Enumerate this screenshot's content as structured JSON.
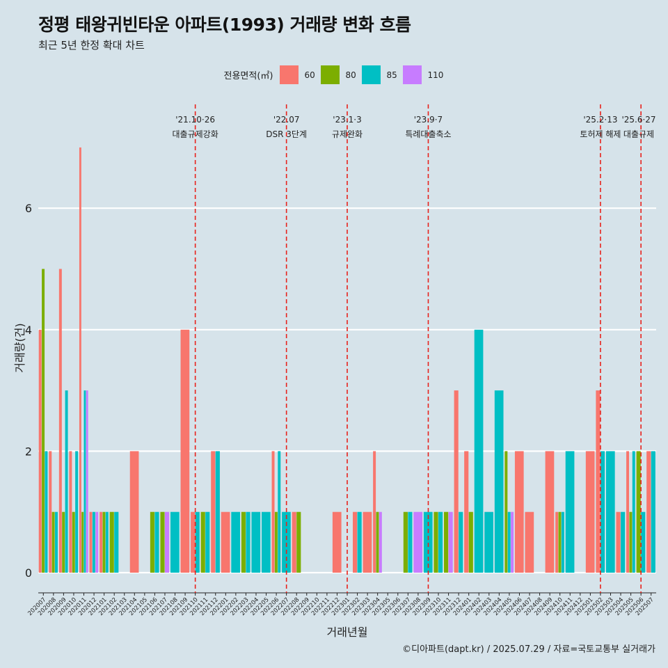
{
  "header": {
    "title": "정평 태왕귀빈타운 아파트(1993) 거래량 변화 흐름",
    "subtitle": "최근 5년 한정 확대 차트"
  },
  "legend": {
    "title": "전용면적(㎡)",
    "items": [
      {
        "label": "60",
        "color": "#f8766d"
      },
      {
        "label": "80",
        "color": "#7cae00"
      },
      {
        "label": "85",
        "color": "#00bfc4"
      },
      {
        "label": "110",
        "color": "#c77cff"
      }
    ]
  },
  "caption": "©디아파트(dapt.kr) / 2025.07.29 / 자료=국토교통부 실거래가",
  "chart_data": {
    "type": "bar",
    "xlabel": "거래년월",
    "ylabel": "거래량(건)",
    "ylim": [
      0,
      7.5
    ],
    "yticks": [
      0,
      2,
      4,
      6
    ],
    "categories": [
      "202007",
      "202008",
      "202009",
      "202010",
      "202011",
      "202012",
      "202101",
      "202102",
      "202103",
      "202104",
      "202105",
      "202106",
      "202107",
      "202108",
      "202109",
      "202110",
      "202111",
      "202112",
      "202201",
      "202202",
      "202203",
      "202204",
      "202205",
      "202206",
      "202207",
      "202208",
      "202209",
      "202210",
      "202211",
      "202212",
      "202301",
      "202302",
      "202303",
      "202304",
      "202305",
      "202306",
      "202307",
      "202308",
      "202309",
      "202310",
      "202311",
      "202312",
      "202401",
      "202402",
      "202403",
      "202404",
      "202405",
      "202406",
      "202407",
      "202408",
      "202409",
      "202410",
      "202411",
      "202412",
      "202501",
      "202502",
      "202503",
      "202504",
      "202505",
      "202506",
      "202507"
    ],
    "series": [
      {
        "name": "60",
        "color": "#f8766d",
        "values": [
          4,
          2,
          5,
          2,
          7,
          1,
          1,
          0,
          0,
          2,
          0,
          0,
          0,
          0,
          4,
          1,
          0,
          2,
          1,
          0,
          0,
          0,
          0,
          2,
          0,
          1,
          0,
          0,
          0,
          1,
          0,
          1,
          1,
          2,
          0,
          0,
          0,
          0,
          0,
          0,
          0,
          3,
          2,
          0,
          0,
          0,
          0,
          2,
          1,
          0,
          2,
          1,
          0,
          0,
          2,
          3,
          0,
          1,
          2,
          0,
          2
        ]
      },
      {
        "name": "80",
        "color": "#7cae00",
        "values": [
          5,
          1,
          1,
          1,
          1,
          0,
          1,
          1,
          0,
          0,
          0,
          1,
          1,
          0,
          0,
          0,
          1,
          0,
          0,
          0,
          1,
          0,
          0,
          1,
          0,
          1,
          0,
          0,
          0,
          0,
          0,
          0,
          0,
          1,
          0,
          0,
          1,
          0,
          0,
          1,
          1,
          0,
          1,
          0,
          0,
          0,
          2,
          0,
          0,
          0,
          0,
          1,
          0,
          0,
          0,
          0,
          0,
          0,
          1,
          2,
          0
        ]
      },
      {
        "name": "85",
        "color": "#00bfc4",
        "values": [
          2,
          1,
          3,
          2,
          3,
          1,
          1,
          1,
          0,
          0,
          0,
          1,
          0,
          1,
          0,
          1,
          1,
          2,
          0,
          1,
          1,
          1,
          1,
          2,
          1,
          0,
          0,
          0,
          0,
          0,
          0,
          1,
          0,
          0,
          0,
          0,
          1,
          0,
          1,
          1,
          0,
          1,
          0,
          4,
          1,
          3,
          1,
          0,
          0,
          0,
          0,
          1,
          2,
          0,
          0,
          2,
          2,
          1,
          2,
          1,
          2
        ]
      },
      {
        "name": "110",
        "color": "#c77cff",
        "values": [
          0,
          0,
          0,
          0,
          3,
          1,
          0,
          0,
          0,
          0,
          0,
          0,
          1,
          0,
          0,
          0,
          0,
          0,
          0,
          0,
          0,
          0,
          0,
          0,
          0,
          0,
          0,
          0,
          0,
          0,
          0,
          0,
          0,
          1,
          0,
          0,
          0,
          1,
          0,
          0,
          1,
          0,
          0,
          0,
          0,
          0,
          1,
          0,
          0,
          0,
          0,
          0,
          0,
          0,
          0,
          0,
          0,
          0,
          0,
          0,
          0
        ]
      }
    ],
    "annotations": [
      {
        "at": "202110",
        "date": "'21.10·26",
        "label": "대출규제강화"
      },
      {
        "at": "202207",
        "date": "'22.07",
        "label": "DSR 3단계"
      },
      {
        "at": "202301",
        "date": "'23.1·3",
        "label": "규제완화"
      },
      {
        "at": "202309",
        "date": "'23.9·7",
        "label": "특례대출축소"
      },
      {
        "at": "202502",
        "date": "'25.2·13",
        "label": "토허제 해제"
      },
      {
        "at": "202506",
        "date": "'25.6·27",
        "label": "대출규제"
      }
    ],
    "grid": true
  }
}
